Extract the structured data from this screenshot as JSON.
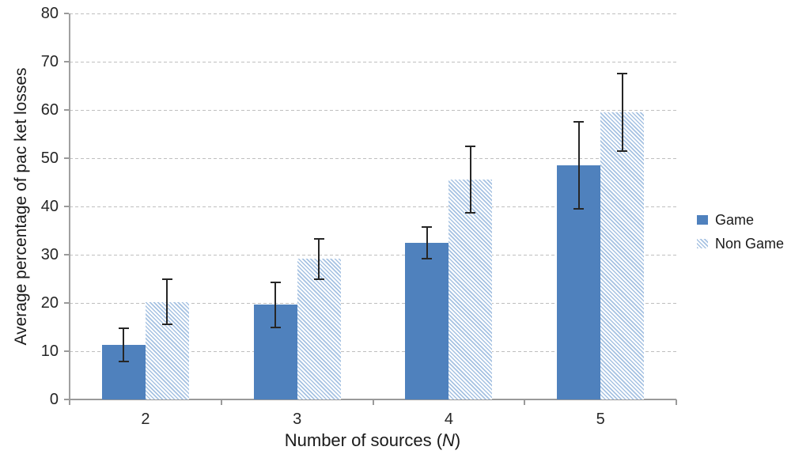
{
  "chart_data": {
    "type": "bar",
    "title": "",
    "categories": [
      "2",
      "3",
      "4",
      "5"
    ],
    "series": [
      {
        "name": "Game",
        "values": [
          11.3,
          19.6,
          32.5,
          48.5
        ],
        "error_bars": [
          3.5,
          4.6,
          3.3,
          9.0
        ],
        "style": "solid",
        "color": "#4F81BD"
      },
      {
        "name": "Non Game",
        "values": [
          20.2,
          29.1,
          45.6,
          59.5
        ],
        "error_bars": [
          4.7,
          4.2,
          6.9,
          8.0
        ],
        "style": "hatch",
        "color": "#A6C2E2"
      }
    ],
    "xlabel": "Number of sources (N)",
    "xlabel_parts": {
      "prefix": "Number of sources (",
      "n": "N",
      "suffix": ")"
    },
    "ylabel": "Average percentage of pac ket losses",
    "ylim": [
      0,
      80
    ],
    "ytick_step": 10,
    "grid": "horizontal-dashed",
    "legend_position": "right",
    "colors": {
      "solid_bar": "#4F81BD",
      "hatch_line": "#A6C2E2",
      "gridline": "#BFBFBF",
      "axis": "#9A9A9A",
      "error_bar": "#262626",
      "text": "#262626"
    }
  }
}
